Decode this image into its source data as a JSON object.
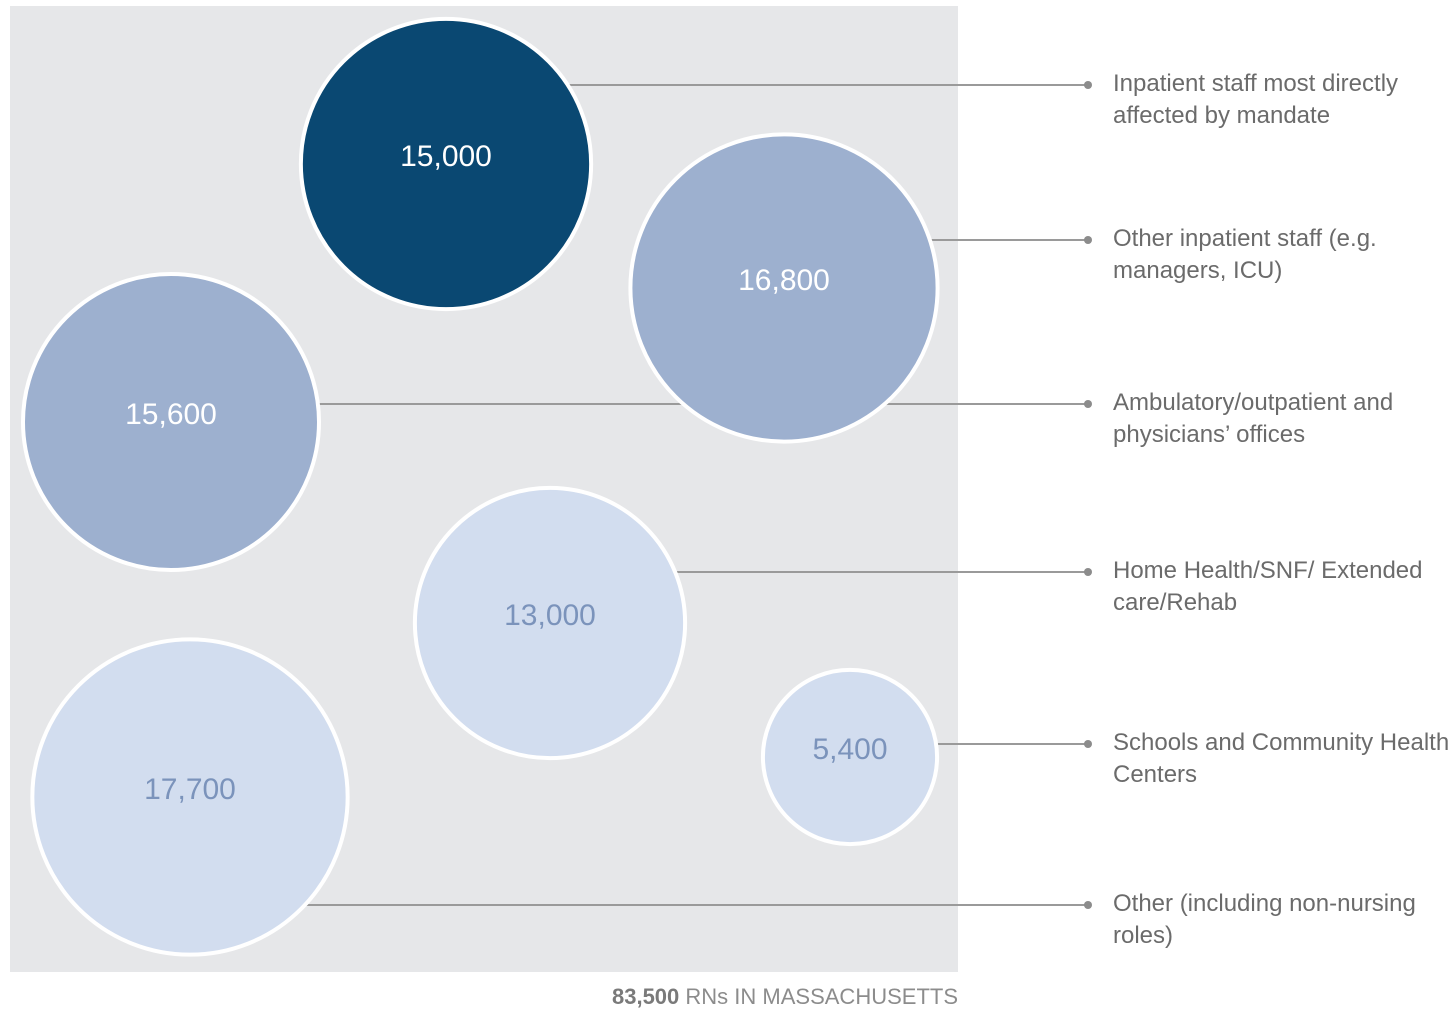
{
  "chart_data": {
    "type": "bubble",
    "categories": [
      "Inpatient staff most directly affected by mandate",
      "Other inpatient staff (e.g. managers, ICU)",
      "Ambulatory/outpatient and physicians’ offices",
      "Home Health/SNF/ Extended care/Rehab",
      "Schools and Community Health Centers",
      "Other (including non-nursing roles)"
    ],
    "values": [
      15000,
      16800,
      15600,
      13000,
      5400,
      17700
    ],
    "value_labels": [
      "15,000",
      "16,800",
      "15,600",
      "13,000",
      "5,400",
      "17,700"
    ],
    "colors": [
      "#0a4872",
      "#9db0cf",
      "#9db0cf",
      "#d2ddef",
      "#d2ddef",
      "#d2ddef"
    ],
    "text_colors": [
      "#ffffff",
      "#ffffff",
      "#ffffff",
      "#7b93bb",
      "#7b93bb",
      "#7b93bb"
    ],
    "footer_value_label": "83,500",
    "footer": "RNs IN MASSACHUSETTS"
  }
}
